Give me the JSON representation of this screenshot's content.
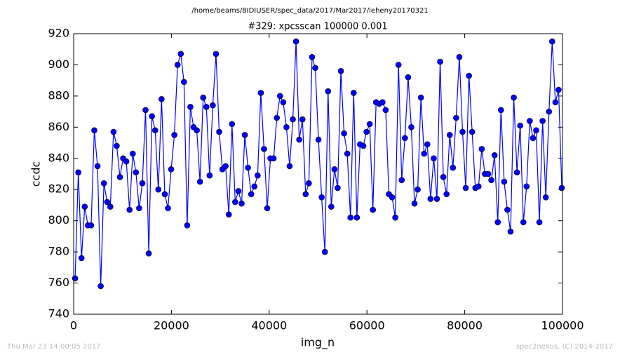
{
  "header": "/home/beams/8IDIUSER/spec_data/2017/Mar2017/leheny20170321",
  "chart_data": {
    "type": "line",
    "title": "#329: xpcsscan 100000 0.001",
    "x_label": "img_n",
    "y_label": "ccdc",
    "xlim": [
      0,
      100000
    ],
    "xticks": [
      0,
      20000,
      40000,
      60000,
      80000,
      100000
    ],
    "ylim": [
      740,
      920
    ],
    "yticks": [
      740,
      760,
      780,
      800,
      820,
      840,
      860,
      880,
      900,
      920
    ],
    "x": [
      300,
      955,
      1610,
      2265,
      2920,
      3575,
      4230,
      4885,
      5540,
      6195,
      6850,
      7505,
      8160,
      8815,
      9470,
      10125,
      10780,
      11435,
      12090,
      12745,
      13400,
      14055,
      14710,
      15365,
      16020,
      16675,
      17330,
      17985,
      18640,
      19295,
      19950,
      20605,
      21260,
      21915,
      22570,
      23225,
      23880,
      24535,
      25190,
      25845,
      26500,
      27155,
      27810,
      28465,
      29120,
      29775,
      30430,
      31085,
      31740,
      32395,
      33050,
      33705,
      34360,
      35015,
      35670,
      36325,
      36980,
      37635,
      38290,
      38945,
      39600,
      40255,
      40910,
      41565,
      42220,
      42875,
      43530,
      44185,
      44840,
      45495,
      46150,
      46805,
      47460,
      48115,
      48770,
      49425,
      50080,
      50735,
      51390,
      52045,
      52700,
      53355,
      54010,
      54665,
      55320,
      55975,
      56630,
      57285,
      57940,
      58595,
      59250,
      59905,
      60560,
      61215,
      61870,
      62525,
      63180,
      63835,
      64490,
      65145,
      65800,
      66455,
      67110,
      67765,
      68420,
      69075,
      69730,
      70385,
      71040,
      71695,
      72350,
      73005,
      73660,
      74315,
      74970,
      75625,
      76280,
      76935,
      77590,
      78245,
      78900,
      79555,
      80210,
      80865,
      81520,
      82175,
      82830,
      83485,
      84140,
      84795,
      85450,
      86105,
      86760,
      87415,
      88070,
      88725,
      89380,
      90035,
      90690,
      91345,
      92000,
      92655,
      93310,
      93965,
      94620,
      95275,
      95930,
      96585,
      97240,
      97895,
      98550,
      99205,
      99860
    ],
    "series": [
      {
        "color": "#0000ff",
        "values": [
          763,
          831,
          776,
          809,
          797,
          797,
          858,
          835,
          758,
          824,
          812,
          809,
          857,
          848,
          828,
          840,
          838,
          807,
          843,
          831,
          808,
          824,
          871,
          779,
          867,
          858,
          820,
          878,
          817,
          808,
          833,
          855,
          900,
          907,
          889,
          797,
          873,
          860,
          858,
          825,
          879,
          873,
          829,
          874,
          907,
          857,
          833,
          835,
          804,
          862,
          812,
          819,
          811,
          855,
          834,
          817,
          822,
          829,
          882,
          846,
          808,
          840,
          840,
          866,
          880,
          876,
          860,
          835,
          865,
          915,
          852,
          865,
          817,
          824,
          905,
          898,
          852,
          815,
          780,
          883,
          809,
          833,
          821,
          896,
          856,
          843,
          802,
          882,
          802,
          849,
          848,
          857,
          862,
          807,
          876,
          875,
          876,
          871,
          817,
          815,
          802,
          900,
          826,
          853,
          892,
          860,
          811,
          820,
          879,
          843,
          849,
          814,
          840,
          814,
          902,
          828,
          817,
          855,
          834,
          866,
          905,
          857,
          821,
          893,
          857,
          821,
          822,
          846,
          830,
          830,
          826,
          842,
          799,
          871,
          825,
          807,
          793,
          879,
          831,
          861,
          799,
          822,
          864,
          853,
          858,
          799,
          864,
          815,
          870,
          915,
          876,
          884,
          821
        ]
      }
    ]
  },
  "footer": {
    "left": "Thu Mar 23 14:00:05 2017",
    "right": "spec2nexus, (C) 2014-2017"
  }
}
